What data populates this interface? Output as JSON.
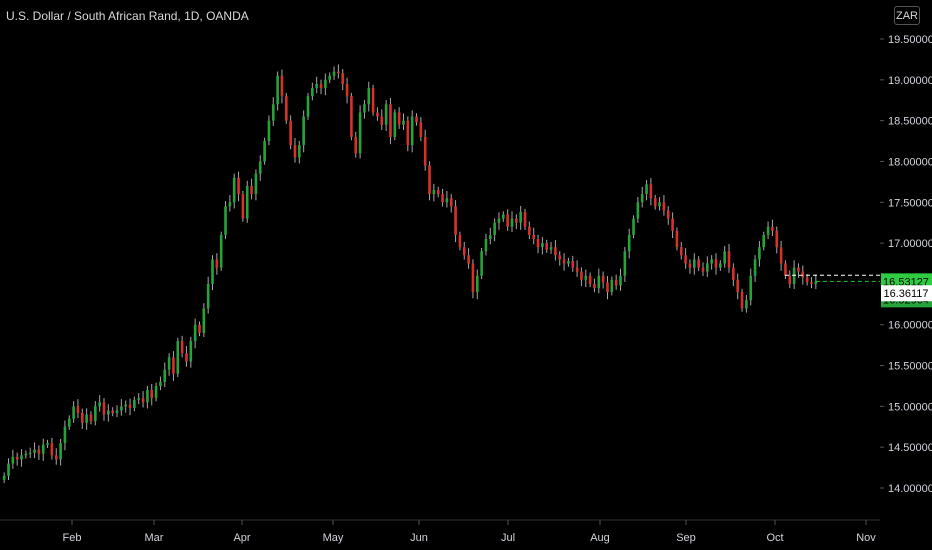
{
  "header": {
    "title": "U.S. Dollar / South African Rand, 1D, OANDA",
    "currency_badge": "ZAR"
  },
  "colors": {
    "background": "#000000",
    "up": "#26a43a",
    "down": "#d8312b",
    "wick": "#a8a8a8",
    "axis_text": "#d1d4dc",
    "last_price_badge": "#2ecc40",
    "last_price_line": "#26c32f",
    "low_badge": "#ffffff"
  },
  "chart_data": {
    "type": "candlestick",
    "ylim": [
      13.5,
      19.75
    ],
    "y_ticks": [
      "19.50000",
      "19.00000",
      "18.50000",
      "18.00000",
      "17.50000",
      "17.00000",
      "16.50000",
      "16.00000",
      "15.50000",
      "15.00000",
      "14.50000",
      "14.00000"
    ],
    "x_ticks": [
      "Feb",
      "Mar",
      "Apr",
      "May",
      "Jun",
      "Jul",
      "Aug",
      "Sep",
      "Oct",
      "Nov"
    ],
    "candles_close": [
      14.15,
      14.3,
      14.38,
      14.35,
      14.4,
      14.42,
      14.43,
      14.47,
      14.42,
      14.53,
      14.55,
      14.4,
      14.35,
      14.55,
      14.75,
      14.85,
      15.0,
      14.92,
      14.8,
      14.9,
      14.82,
      15.0,
      15.05,
      14.9,
      14.95,
      14.92,
      14.95,
      15.0,
      15.02,
      14.98,
      15.08,
      15.1,
      15.05,
      15.2,
      15.1,
      15.25,
      15.3,
      15.45,
      15.6,
      15.4,
      15.8,
      15.65,
      15.55,
      15.8,
      16.0,
      15.9,
      16.2,
      16.5,
      16.8,
      16.7,
      17.1,
      17.45,
      17.5,
      17.8,
      17.6,
      17.3,
      17.7,
      17.6,
      17.85,
      18.0,
      18.25,
      18.5,
      18.7,
      19.05,
      18.8,
      18.5,
      18.2,
      18.05,
      18.2,
      18.55,
      18.8,
      18.9,
      18.95,
      18.9,
      19.0,
      19.05,
      19.1,
      19.08,
      18.95,
      18.8,
      18.3,
      18.1,
      18.6,
      18.7,
      18.9,
      18.6,
      18.55,
      18.45,
      18.7,
      18.3,
      18.6,
      18.45,
      18.5,
      18.2,
      18.55,
      18.48,
      18.3,
      17.95,
      17.6,
      17.65,
      17.6,
      17.5,
      17.55,
      17.45,
      17.1,
      16.95,
      16.85,
      16.75,
      16.4,
      16.6,
      16.9,
      17.05,
      17.1,
      17.25,
      17.3,
      17.35,
      17.2,
      17.3,
      17.25,
      17.38,
      17.2,
      17.1,
      17.05,
      16.95,
      17.0,
      16.92,
      16.95,
      16.85,
      16.8,
      16.75,
      16.78,
      16.7,
      16.65,
      16.55,
      16.6,
      16.5,
      16.45,
      16.6,
      16.52,
      16.4,
      16.55,
      16.48,
      16.6,
      16.9,
      17.1,
      17.3,
      17.5,
      17.6,
      17.72,
      17.55,
      17.45,
      17.5,
      17.4,
      17.3,
      17.15,
      16.95,
      16.85,
      16.75,
      16.7,
      16.8,
      16.7,
      16.65,
      16.75,
      16.8,
      16.7,
      16.75,
      16.9,
      16.7,
      16.55,
      16.4,
      16.2,
      16.3,
      16.6,
      16.8,
      16.95,
      17.1,
      17.2,
      17.15,
      16.95,
      16.75,
      16.6,
      16.5,
      16.7,
      16.65,
      16.58,
      16.52,
      16.5,
      16.53
    ],
    "last_price": "16.53127",
    "last_price_value": 16.53127,
    "second_price": "16.52964",
    "low_price": "16.36117",
    "low_price_value": 16.36117,
    "grid": false
  }
}
